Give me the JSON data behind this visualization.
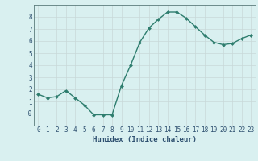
{
  "x": [
    0,
    1,
    2,
    3,
    4,
    5,
    6,
    7,
    8,
    9,
    10,
    11,
    12,
    13,
    14,
    15,
    16,
    17,
    18,
    19,
    20,
    21,
    22,
    23
  ],
  "y": [
    1.6,
    1.3,
    1.4,
    1.9,
    1.3,
    0.7,
    -0.1,
    -0.1,
    -0.1,
    2.3,
    4.0,
    5.9,
    7.1,
    7.8,
    8.4,
    8.4,
    7.9,
    7.2,
    6.5,
    5.9,
    5.7,
    5.8,
    6.2,
    6.5
  ],
  "line_color": "#2e7d6e",
  "marker": "D",
  "marker_size": 2.0,
  "bg_color": "#d9f0f0",
  "grid_color": "#c8d8d8",
  "xlabel": "Humidex (Indice chaleur)",
  "xlim": [
    -0.5,
    23.5
  ],
  "ylim": [
    -1.0,
    9.0
  ],
  "yticks": [
    0,
    1,
    2,
    3,
    4,
    5,
    6,
    7,
    8
  ],
  "ytick_labels": [
    "-0",
    "1",
    "2",
    "3",
    "4",
    "5",
    "6",
    "7",
    "8"
  ],
  "xtick_labels": [
    "0",
    "1",
    "2",
    "3",
    "4",
    "5",
    "6",
    "7",
    "8",
    "9",
    "10",
    "11",
    "12",
    "13",
    "14",
    "15",
    "16",
    "17",
    "18",
    "19",
    "20",
    "21",
    "22",
    "23"
  ],
  "xlabel_fontsize": 6.5,
  "tick_fontsize": 5.5,
  "tick_color": "#2e5070",
  "axis_color": "#5a7a7a",
  "label_color": "#2e5070",
  "line_width": 1.0
}
